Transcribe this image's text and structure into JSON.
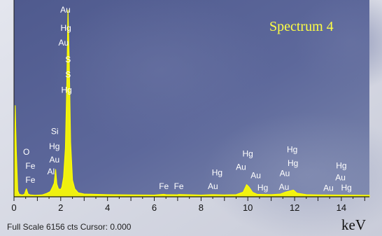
{
  "chart_data": {
    "type": "line",
    "title": "Spectrum 4",
    "xlabel": "keV",
    "ylabel": "",
    "xlim": [
      0,
      15.2
    ],
    "ylim": [
      0,
      6156
    ],
    "x_ticks": [
      0,
      2,
      4,
      6,
      8,
      10,
      12,
      14
    ],
    "grid": false,
    "colors": {
      "spectrum": "#ffff00",
      "labels": "#ffffff",
      "plot_bg": "#5b6698",
      "panel_bg": "#d8dbe6"
    },
    "series": [
      {
        "values": [
          [
            0.0,
            60
          ],
          [
            0.05,
            3000
          ],
          [
            0.1,
            1500
          ],
          [
            0.16,
            200
          ],
          [
            0.22,
            80
          ],
          [
            0.35,
            60
          ],
          [
            0.45,
            80
          ],
          [
            0.53,
            260
          ],
          [
            0.6,
            90
          ],
          [
            0.7,
            60
          ],
          [
            0.9,
            50
          ],
          [
            1.2,
            60
          ],
          [
            1.4,
            110
          ],
          [
            1.55,
            170
          ],
          [
            1.65,
            320
          ],
          [
            1.72,
            450
          ],
          [
            1.78,
            900
          ],
          [
            1.83,
            420
          ],
          [
            1.9,
            260
          ],
          [
            2.0,
            240
          ],
          [
            2.05,
            320
          ],
          [
            2.12,
            650
          ],
          [
            2.2,
            1600
          ],
          [
            2.26,
            3700
          ],
          [
            2.31,
            6150
          ],
          [
            2.36,
            4500
          ],
          [
            2.42,
            1800
          ],
          [
            2.5,
            550
          ],
          [
            2.6,
            260
          ],
          [
            2.75,
            130
          ],
          [
            3.0,
            90
          ],
          [
            4.0,
            70
          ],
          [
            5.0,
            60
          ],
          [
            6.0,
            55
          ],
          [
            6.4,
            80
          ],
          [
            6.5,
            70
          ],
          [
            7.0,
            65
          ],
          [
            7.05,
            75
          ],
          [
            8.0,
            55
          ],
          [
            8.5,
            70
          ],
          [
            9.0,
            60
          ],
          [
            9.5,
            70
          ],
          [
            9.8,
            150
          ],
          [
            9.95,
            400
          ],
          [
            10.05,
            320
          ],
          [
            10.2,
            150
          ],
          [
            10.4,
            80
          ],
          [
            11.0,
            70
          ],
          [
            11.4,
            90
          ],
          [
            11.6,
            150
          ],
          [
            11.95,
            220
          ],
          [
            12.1,
            120
          ],
          [
            12.5,
            70
          ],
          [
            13.0,
            60
          ],
          [
            14.0,
            55
          ],
          [
            15.0,
            50
          ],
          [
            15.2,
            50
          ]
        ]
      }
    ],
    "peak_labels": [
      {
        "text": "Au",
        "x": 2.2,
        "counts": 6060
      },
      {
        "text": "Hg",
        "x": 2.22,
        "counts": 5470
      },
      {
        "text": "Au",
        "x": 2.12,
        "counts": 4980
      },
      {
        "text": "S",
        "x": 2.31,
        "counts": 4430
      },
      {
        "text": "S",
        "x": 2.31,
        "counts": 3930
      },
      {
        "text": "Hg",
        "x": 2.25,
        "counts": 3420
      },
      {
        "text": "Si",
        "x": 1.74,
        "counts": 2060
      },
      {
        "text": "Hg",
        "x": 1.73,
        "counts": 1570
      },
      {
        "text": "Au",
        "x": 1.73,
        "counts": 1130
      },
      {
        "text": "Al",
        "x": 1.58,
        "counts": 740
      },
      {
        "text": "O",
        "x": 0.53,
        "counts": 1380
      },
      {
        "text": "Fe",
        "x": 0.7,
        "counts": 920
      },
      {
        "text": "Fe",
        "x": 0.7,
        "counts": 460
      },
      {
        "text": "Fe",
        "x": 6.41,
        "counts": 250
      },
      {
        "text": "Fe",
        "x": 7.05,
        "counts": 250
      },
      {
        "text": "Hg",
        "x": 8.69,
        "counts": 700
      },
      {
        "text": "Au",
        "x": 8.51,
        "counts": 250
      },
      {
        "text": "Hg",
        "x": 10.0,
        "counts": 1330
      },
      {
        "text": "Au",
        "x": 9.71,
        "counts": 890
      },
      {
        "text": "Au",
        "x": 10.34,
        "counts": 610
      },
      {
        "text": "Hg",
        "x": 10.64,
        "counts": 210
      },
      {
        "text": "Hg",
        "x": 11.9,
        "counts": 1460
      },
      {
        "text": "Hg",
        "x": 11.93,
        "counts": 1020
      },
      {
        "text": "Au",
        "x": 11.58,
        "counts": 680
      },
      {
        "text": "Au",
        "x": 11.55,
        "counts": 230
      },
      {
        "text": "Hg",
        "x": 14.0,
        "counts": 930
      },
      {
        "text": "Au",
        "x": 13.96,
        "counts": 540
      },
      {
        "text": "Au",
        "x": 13.45,
        "counts": 200
      },
      {
        "text": "Hg",
        "x": 14.22,
        "counts": 210
      }
    ]
  },
  "status_line": "Full Scale 6156 cts Cursor: 0.000"
}
